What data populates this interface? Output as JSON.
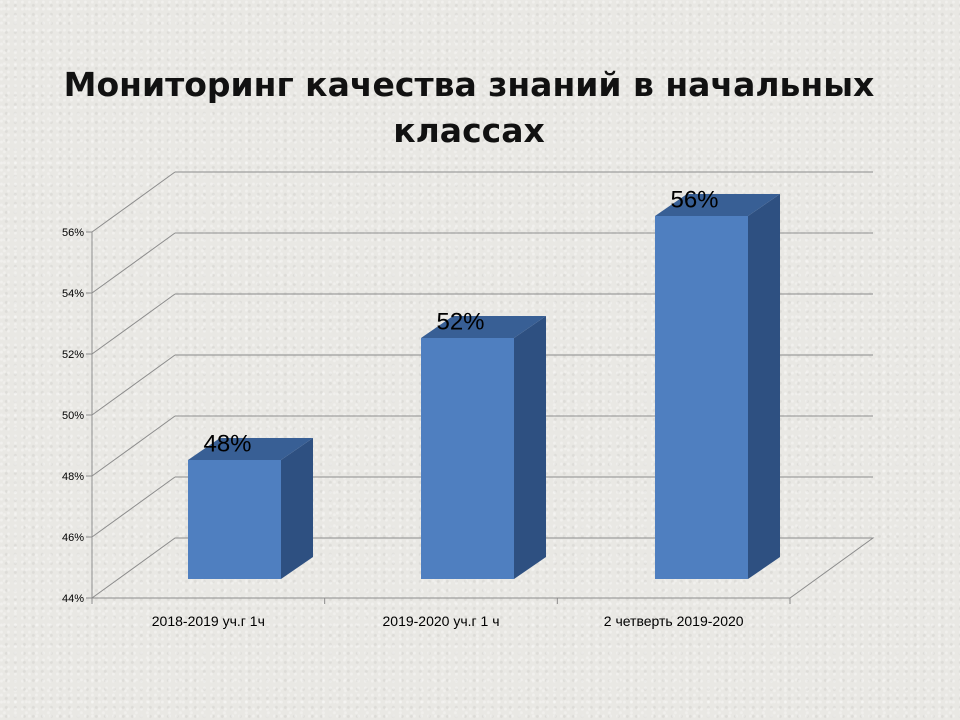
{
  "chart_data": {
    "type": "bar",
    "title": "Мониторинг качества знаний в начальных классах",
    "title_lines": [
      "Мониторинг качества знаний в начальных",
      "классах"
    ],
    "categories": [
      "2018-2019 уч.г 1ч",
      "2019-2020 уч.г 1 ч",
      "2 четверть 2019-2020"
    ],
    "values": [
      48,
      52,
      56
    ],
    "data_labels": [
      "48%",
      "52%",
      "56%"
    ],
    "ylim": [
      44,
      56
    ],
    "yticks": [
      44,
      46,
      48,
      50,
      52,
      54,
      56
    ],
    "ytick_labels": [
      "44%",
      "46%",
      "48%",
      "50%",
      "52%",
      "54%",
      "56%"
    ],
    "grid": true,
    "style": "3d-column",
    "colors": {
      "bar_front": "#4f7fc0",
      "bar_side": "#2e5081",
      "bar_top": "#385f95"
    }
  }
}
